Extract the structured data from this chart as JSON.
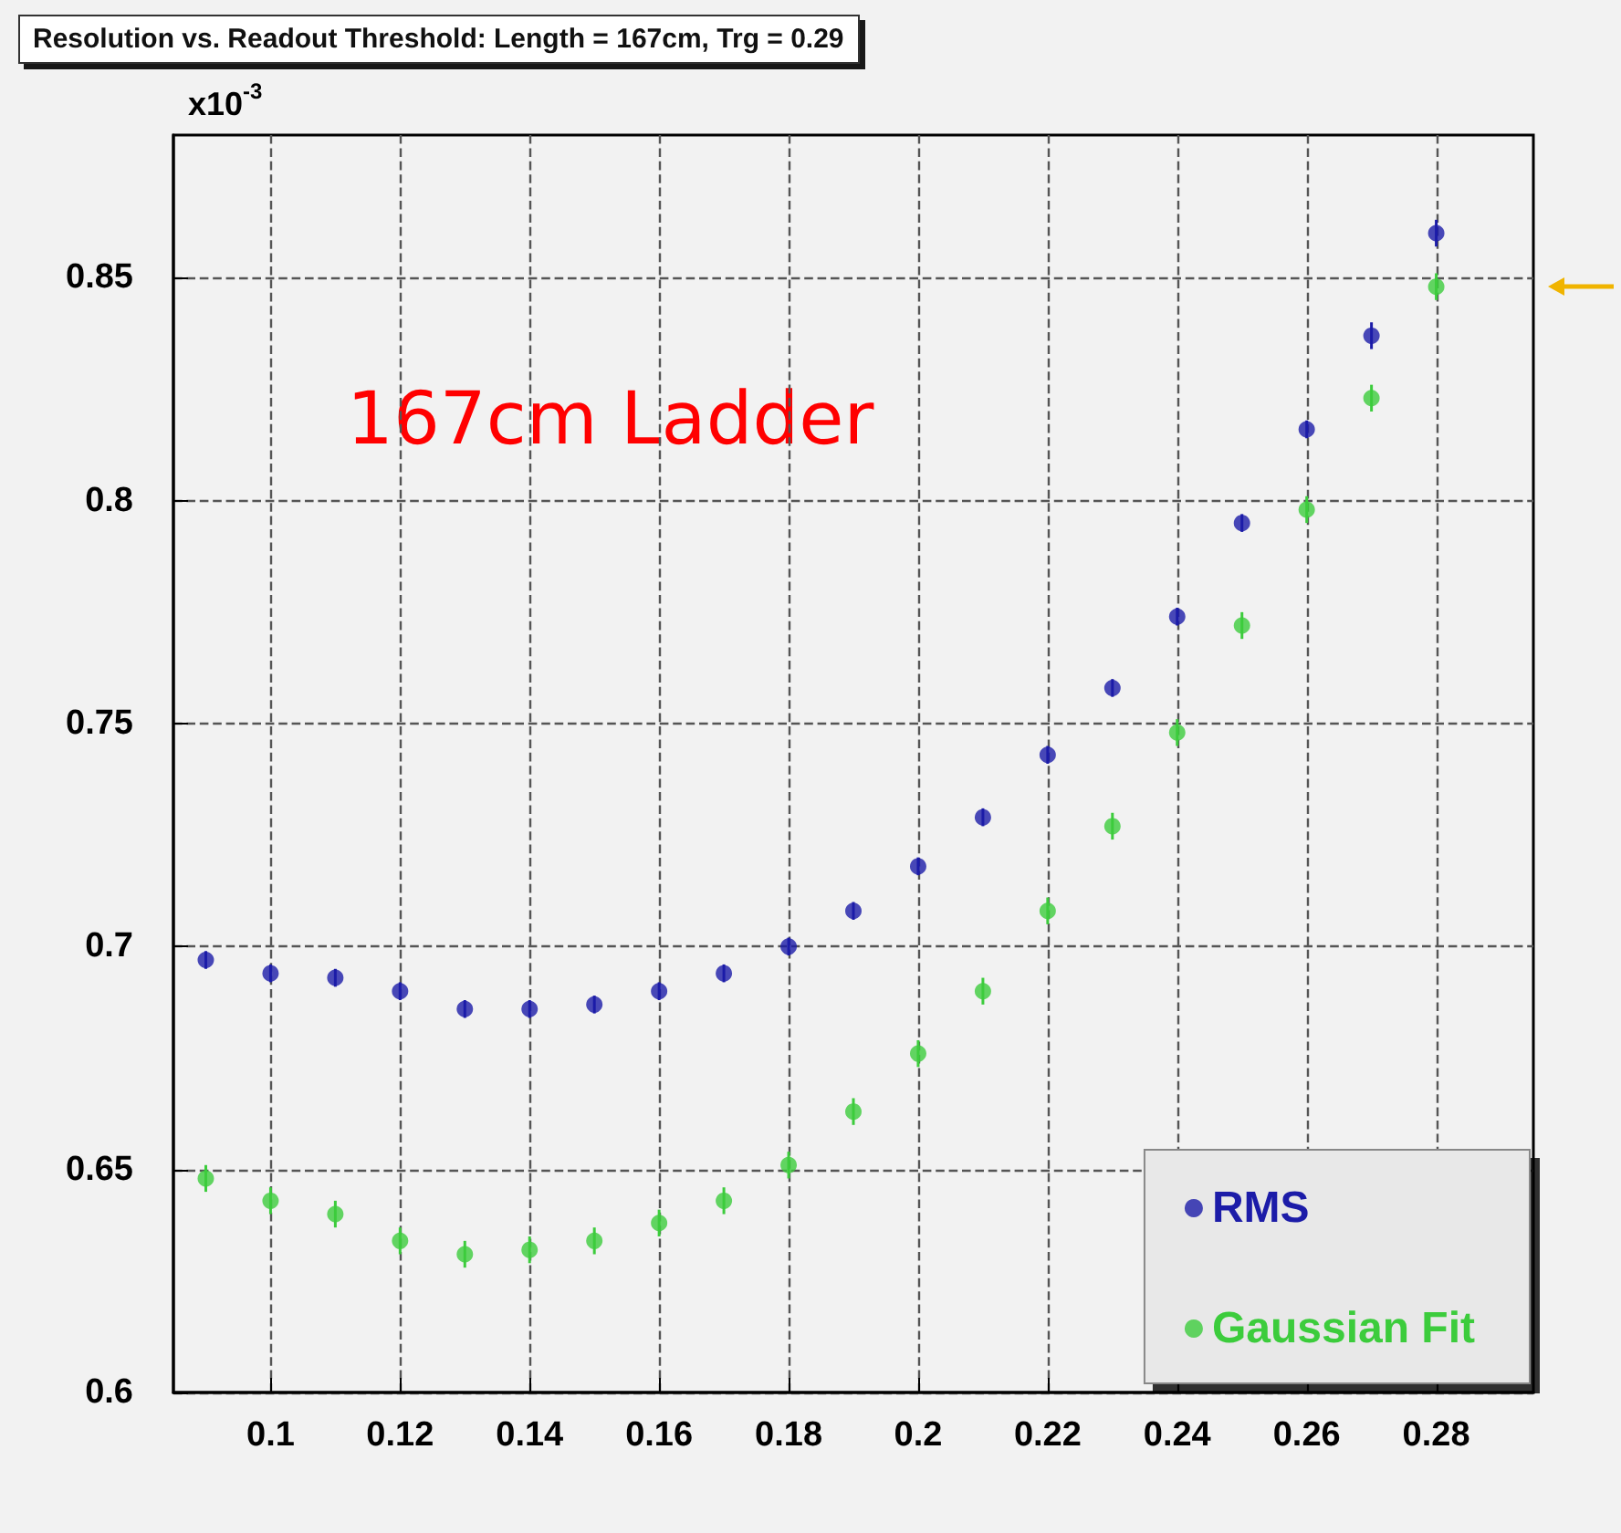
{
  "chart_data": {
    "type": "scatter",
    "title": "Resolution vs. Readout Threshold: Length = 167cm, Trg = 0.29",
    "ylabel": "x10$^{-3}$",
    "annotations": [
      "167cm Ladder"
    ],
    "x": [
      0.09,
      0.1,
      0.11,
      0.12,
      0.13,
      0.14,
      0.15,
      0.16,
      0.17,
      0.18,
      0.19,
      0.2,
      0.21,
      0.22,
      0.23,
      0.24,
      0.25,
      0.26,
      0.27,
      0.28
    ],
    "series": [
      {
        "name": "RMS",
        "color": "#1c1ca8",
        "values": [
          0.697,
          0.694,
          0.693,
          0.69,
          0.686,
          0.686,
          0.687,
          0.69,
          0.694,
          0.7,
          0.708,
          0.718,
          0.729,
          0.743,
          0.758,
          0.774,
          0.795,
          0.816,
          0.837,
          0.86
        ],
        "errors": [
          0.002,
          0.002,
          0.002,
          0.002,
          0.002,
          0.002,
          0.002,
          0.002,
          0.002,
          0.002,
          0.002,
          0.002,
          0.002,
          0.002,
          0.002,
          0.002,
          0.002,
          0.002,
          0.003,
          0.003
        ]
      },
      {
        "name": "Gaussian Fit",
        "color": "#3ccc3c",
        "values": [
          0.648,
          0.643,
          0.64,
          0.634,
          0.631,
          0.632,
          0.634,
          0.638,
          0.643,
          0.651,
          0.663,
          0.676,
          0.69,
          0.708,
          0.727,
          0.748,
          0.772,
          0.798,
          0.823,
          0.848
        ],
        "errors": [
          0.003,
          0.003,
          0.003,
          0.003,
          0.003,
          0.003,
          0.003,
          0.003,
          0.003,
          0.003,
          0.003,
          0.003,
          0.003,
          0.003,
          0.003,
          0.003,
          0.003,
          0.003,
          0.003,
          0.003
        ]
      }
    ],
    "xlim": [
      0.085,
      0.295
    ],
    "xticks": [
      0.1,
      0.12,
      0.14,
      0.16,
      0.18,
      0.2,
      0.22,
      0.24,
      0.26,
      0.28
    ],
    "ylim": [
      0.6,
      0.882
    ],
    "yticks": [
      0.6,
      0.65,
      0.7,
      0.75,
      0.8,
      0.85
    ],
    "grid": true,
    "legend": "bottom right",
    "marker": "circle"
  }
}
